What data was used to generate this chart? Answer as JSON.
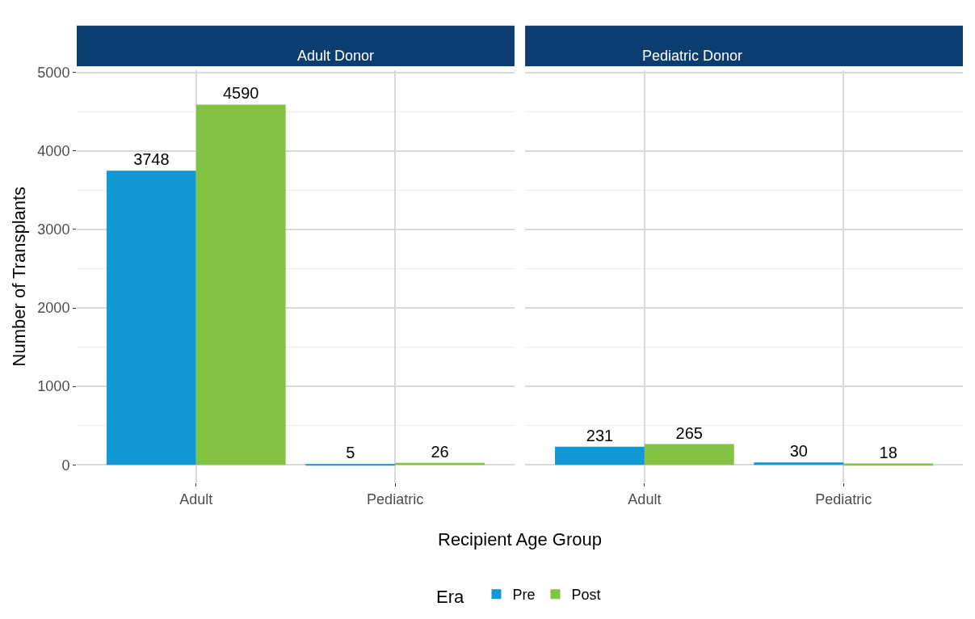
{
  "chart_data": [
    {
      "type": "bar",
      "title": "Adult Donor",
      "xlabel": "Recipient Age Group",
      "ylabel": "Number of Transplants",
      "legend_title": "Era",
      "legend": "bottom",
      "categories": [
        "Adult",
        "Pediatric"
      ],
      "series": [
        {
          "name": "Pre",
          "color": "#1199d6",
          "values": [
            3748,
            5
          ]
        },
        {
          "name": "Post",
          "color": "#82c341",
          "values": [
            4590,
            26
          ]
        }
      ],
      "ylim": [
        0,
        5000
      ],
      "yticks": [
        0,
        1000,
        2000,
        3000,
        4000,
        5000
      ],
      "grid": true,
      "data_labels": true
    },
    {
      "type": "bar",
      "title": "Pediatric Donor",
      "categories": [
        "Adult",
        "Pediatric"
      ],
      "series": [
        {
          "name": "Pre",
          "color": "#1199d6",
          "values": [
            231,
            30
          ]
        },
        {
          "name": "Post",
          "color": "#82c341",
          "values": [
            265,
            18
          ]
        }
      ],
      "ylim": [
        0,
        5000
      ],
      "yticks": [
        0,
        1000,
        2000,
        3000,
        4000,
        5000
      ],
      "grid": true,
      "data_labels": true,
      "tick_labels": "x"
    }
  ]
}
